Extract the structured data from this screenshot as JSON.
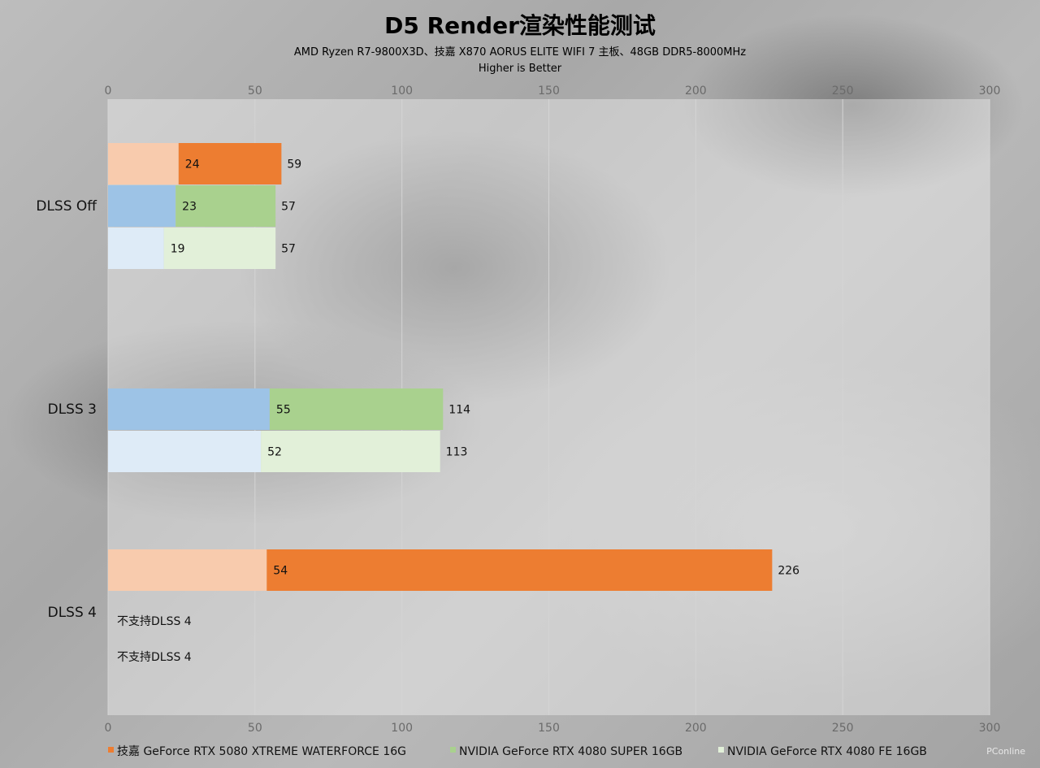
{
  "chart_data": {
    "type": "bar",
    "orientation": "horizontal",
    "title": "D5 Render渲染性能测试",
    "subtitle": "AMD Ryzen R7-9800X3D、技嘉 X870 AORUS ELITE WIFI 7 主板、48GB DDR5-8000MHz",
    "subtitle2": "Higher is Better",
    "xlim": [
      0,
      300
    ],
    "xticks": [
      0,
      50,
      100,
      150,
      200,
      250,
      300
    ],
    "grid": true,
    "legend_position": "bottom",
    "categories": [
      "DLSS Off",
      "DLSS 3",
      "DLSS 4"
    ],
    "series": [
      {
        "name": "技嘉 GeForce RTX 5080 XTREME WATERFORCE 16G",
        "color": "#ed7d31",
        "base_color": "#f8cbad",
        "inner_values": [
          24,
          null,
          54
        ],
        "values": [
          59,
          null,
          226
        ],
        "notes": [
          "",
          "",
          ""
        ]
      },
      {
        "name": "NVIDIA GeForce RTX 4080 SUPER 16GB",
        "color": "#a9d18e",
        "base_color": "#9dc3e6",
        "inner_values": [
          23,
          55,
          null
        ],
        "values": [
          57,
          114,
          null
        ],
        "notes": [
          "",
          "",
          "不支持DLSS 4"
        ]
      },
      {
        "name": "NVIDIA GeForce RTX 4080 FE 16GB",
        "color": "#e2f0d9",
        "base_color": "#deebf7",
        "inner_values": [
          19,
          52,
          null
        ],
        "values": [
          57,
          113,
          null
        ],
        "notes": [
          "",
          "",
          "不支持DLSS 4"
        ]
      }
    ]
  },
  "watermark": "PConline"
}
